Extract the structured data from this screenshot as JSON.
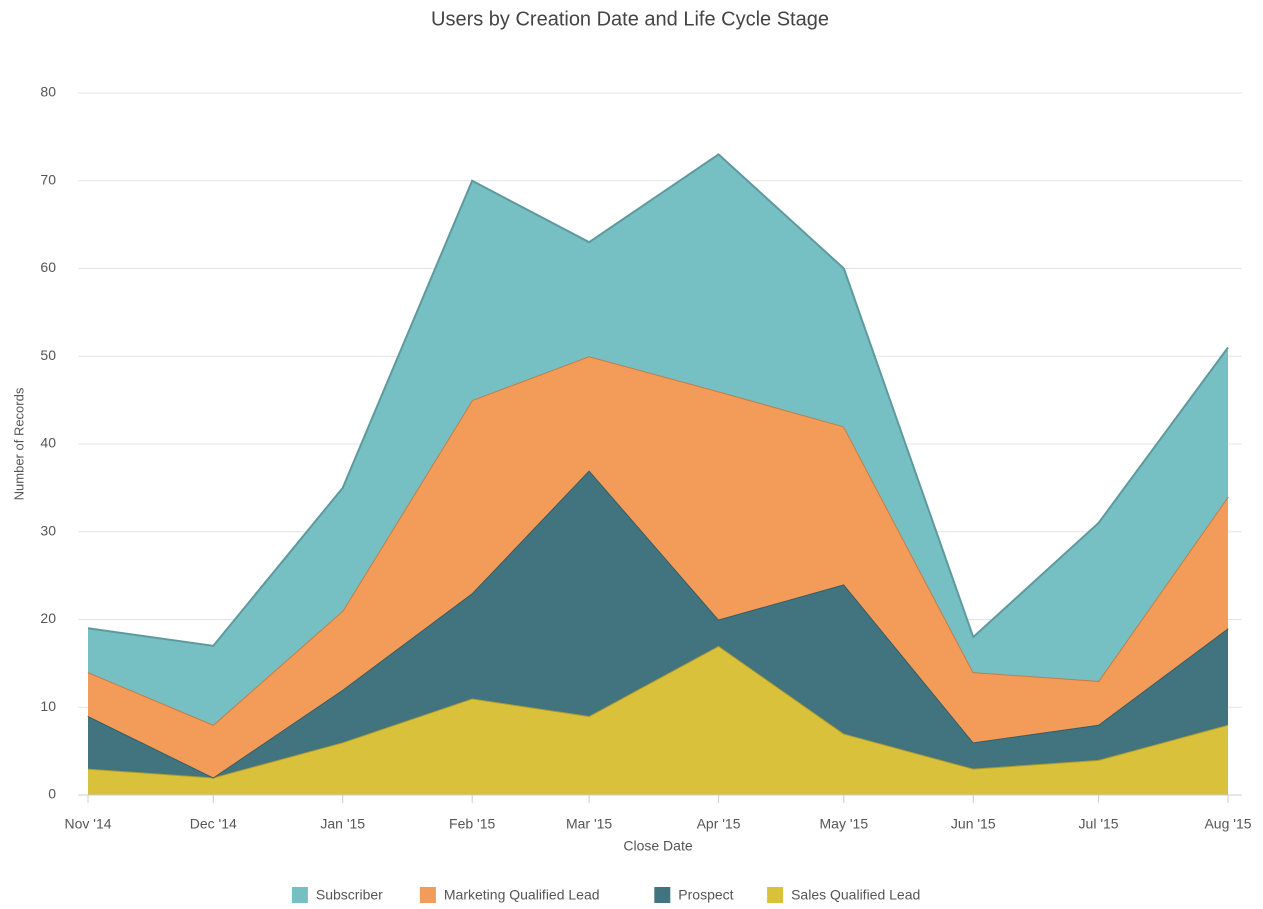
{
  "chart_data": {
    "type": "stacked_area",
    "title": "Users by Creation Date and Life Cycle Stage",
    "xlabel": "Close Date",
    "ylabel": "Number of Records",
    "categories": [
      "Nov '14",
      "Dec '14",
      "Jan '15",
      "Feb '15",
      "Mar '15",
      "Apr '15",
      "May '15",
      "Jun '15",
      "Jul '15",
      "Aug '15"
    ],
    "series": [
      {
        "name": "Subscriber",
        "color": "#76c0c4",
        "values": [
          5,
          9,
          14,
          25,
          13,
          27,
          18,
          4,
          18,
          17
        ]
      },
      {
        "name": "Marketing Qualified Lead",
        "color": "#f39c5a",
        "values": [
          5,
          6,
          9,
          22,
          13,
          26,
          18,
          8,
          5,
          15
        ]
      },
      {
        "name": "Prospect",
        "color": "#41747f",
        "values": [
          6,
          0,
          6,
          12,
          28,
          3,
          17,
          3,
          4,
          11
        ]
      },
      {
        "name": "Sales Qualified Lead",
        "color": "#d9c13c",
        "values": [
          3,
          2,
          6,
          11,
          9,
          17,
          7,
          3,
          4,
          8
        ]
      }
    ],
    "ylim": [
      0,
      80
    ],
    "yticks": [
      0,
      10,
      20,
      30,
      40,
      50,
      60,
      70,
      80
    ],
    "grid": true,
    "legend": "bottom"
  }
}
